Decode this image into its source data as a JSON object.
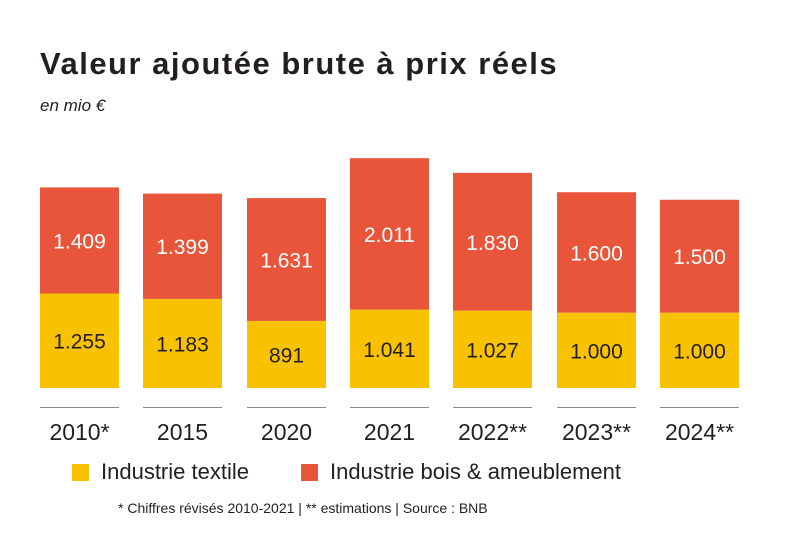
{
  "title": "Valeur ajoutée brute à prix réels",
  "subtitle": "en mio €",
  "footnote": "* Chiffres révisés 2010-2021 | ** estimations | Source : BNB",
  "colors": {
    "textile": "#f9c200",
    "bois": "#e8553a",
    "text": "#231f20",
    "axis": "#8a8a8a"
  },
  "legend": [
    {
      "label": "Industrie textile",
      "color": "#f9c200"
    },
    {
      "label": "Industrie bois & ameublement",
      "color": "#e8553a"
    }
  ],
  "chart_data": {
    "type": "bar",
    "stacked": true,
    "categories": [
      "2010*",
      "2015",
      "2020",
      "2021",
      "2022**",
      "2023**",
      "2024**"
    ],
    "series": [
      {
        "name": "Industrie textile",
        "values": [
          1255,
          1183,
          891,
          1041,
          1027,
          1000,
          1000
        ],
        "labels": [
          "1.255",
          "1.183",
          "891",
          "1.041",
          "1.027",
          "1.000",
          "1.000"
        ]
      },
      {
        "name": "Industrie bois & ameublement",
        "values": [
          1409,
          1399,
          1631,
          2011,
          1830,
          1600,
          1500
        ],
        "labels": [
          "1.409",
          "1.399",
          "1.631",
          "2.011",
          "1.830",
          "1.600",
          "1.500"
        ]
      }
    ],
    "title": "Valeur ajoutée brute à prix réels",
    "ylabel": "en mio €",
    "legend_position": "bottom",
    "grid": false
  }
}
